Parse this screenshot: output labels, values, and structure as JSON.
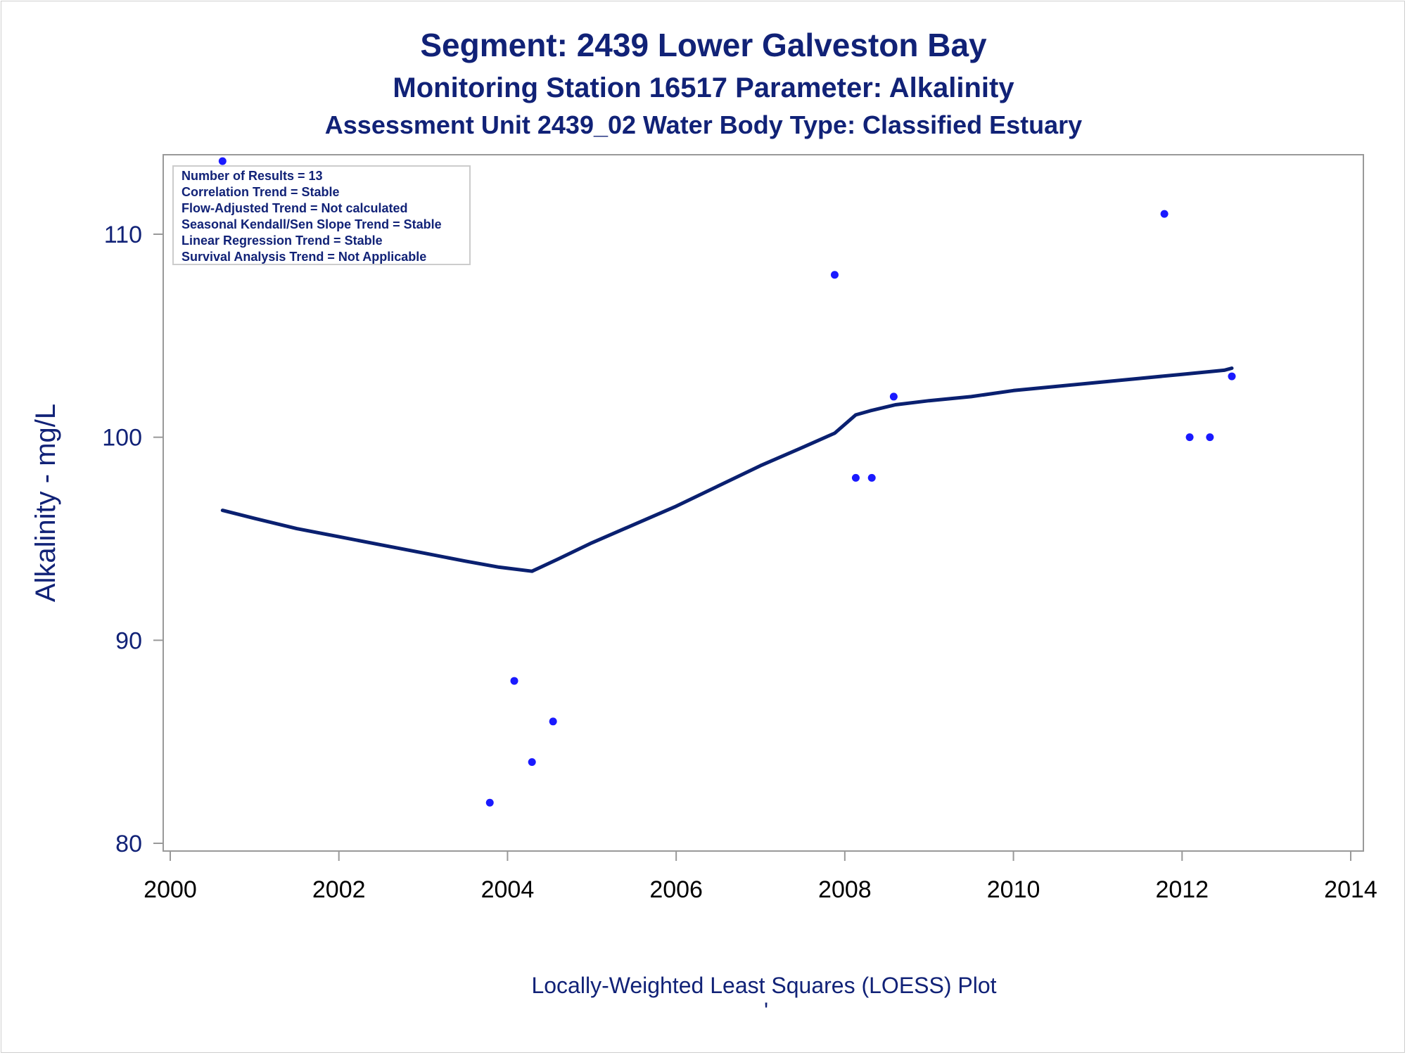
{
  "chart_data": {
    "type": "scatter",
    "title": "Segment: 2439  Lower Galveston Bay",
    "subtitle": "Monitoring Station 16517 Parameter: Alkalinity",
    "subtitle2": "Assessment Unit 2439_02   Water Body Type: Classified Estuary",
    "xlabel": "Locally-Weighted Least Squares (LOESS) Plot",
    "footnote_mark": "'",
    "ylabel": "Alkalinity - mg/L",
    "xlim": [
      2000,
      2014
    ],
    "ylim": [
      80,
      114.6
    ],
    "xticks": [
      "2000",
      "2002",
      "2004",
      "2006",
      "2008",
      "2010",
      "2012",
      "2014"
    ],
    "yticks": [
      "80",
      "90",
      "100",
      "110"
    ],
    "grid": false,
    "stats_box": [
      "Number of Results = 13",
      "Correlation Trend = Stable",
      "Flow-Adjusted Trend = Not calculated",
      "Seasonal Kendall/Sen Slope Trend = Stable",
      "Linear Regression Trend = Stable",
      "Survival Analysis Trend = Not Applicable"
    ],
    "series": [
      {
        "kind": "points",
        "color": "#1a1aff",
        "x": [
          2000.62,
          2003.79,
          2004.08,
          2004.29,
          2004.54,
          2007.88,
          2008.13,
          2008.32,
          2008.58,
          2011.79,
          2012.09,
          2012.33,
          2012.59
        ],
        "y": [
          113.6,
          82,
          88,
          84,
          86,
          108,
          98,
          98,
          102,
          111,
          100,
          100,
          103
        ]
      },
      {
        "kind": "loess",
        "color": "#0a2070",
        "x": [
          2000.62,
          2001.0,
          2001.5,
          2002.0,
          2002.5,
          2003.0,
          2003.5,
          2003.9,
          2004.29,
          2004.6,
          2005.0,
          2005.5,
          2006.0,
          2006.5,
          2007.0,
          2007.5,
          2007.88,
          2008.13,
          2008.3,
          2008.6,
          2009.0,
          2009.5,
          2010.0,
          2010.5,
          2011.0,
          2011.5,
          2012.0,
          2012.5,
          2012.59
        ],
        "y": [
          96.4,
          96.0,
          95.5,
          95.1,
          94.7,
          94.3,
          93.9,
          93.6,
          93.4,
          94.0,
          94.8,
          95.7,
          96.6,
          97.6,
          98.6,
          99.5,
          100.2,
          101.1,
          101.3,
          101.6,
          101.8,
          102.0,
          102.3,
          102.5,
          102.7,
          102.9,
          103.1,
          103.3,
          103.4
        ]
      }
    ]
  }
}
